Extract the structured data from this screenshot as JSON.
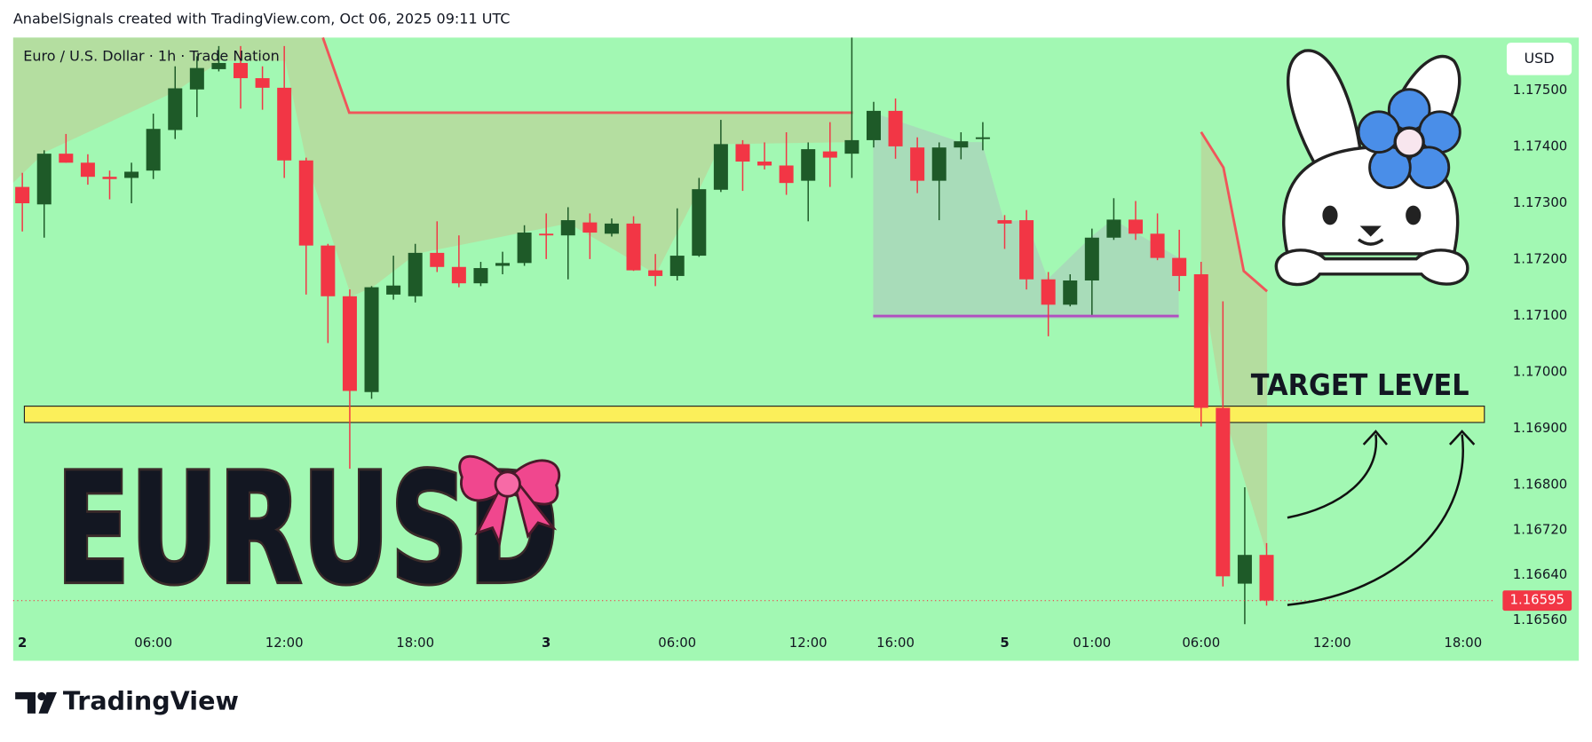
{
  "header": "AnabelSignals created with TradingView.com, Oct 06, 2025 09:11 UTC",
  "brand": "TradingView",
  "chart_data": {
    "type": "candlestick",
    "title": "Euro / U.S. Dollar · 1h · Trade Nation",
    "currency": "USD",
    "overlay_text": "EURUSD",
    "annotation": "TARGET LEVEL",
    "up_color": "#1e5a28",
    "down_color": "#f23645",
    "categories": [
      "2",
      null,
      null,
      null,
      null,
      null,
      "06:00",
      null,
      null,
      null,
      null,
      null,
      "12:00",
      null,
      null,
      null,
      null,
      null,
      "18:00",
      null,
      null,
      null,
      null,
      null,
      "3",
      null,
      null,
      null,
      null,
      null,
      "06:00",
      null,
      null,
      null,
      null,
      null,
      "12:00",
      null,
      null,
      null,
      "16:00",
      null,
      null,
      null,
      null,
      "5",
      null,
      null,
      null,
      "01:00",
      null,
      null,
      null,
      null,
      "06:00",
      null,
      null,
      null,
      null,
      null,
      "12:00",
      null,
      null,
      null,
      null,
      null,
      "18:00",
      null
    ],
    "open": [
      1.17329,
      1.17298,
      1.17388,
      1.17372,
      1.17347,
      1.17345,
      1.17358,
      1.1743,
      1.17502,
      1.17538,
      1.17549,
      1.17522,
      1.17505,
      1.17376,
      1.17225,
      1.17135,
      1.16965,
      1.17138,
      1.17135,
      1.17212,
      1.17187,
      1.17158,
      1.17189,
      1.17194,
      1.17246,
      1.17243,
      1.17266,
      1.17246,
      1.17264,
      1.17181,
      1.17171,
      1.17207,
      1.17324,
      1.17405,
      1.17374,
      1.17367,
      1.1734,
      1.17392,
      1.17388,
      1.17412,
      1.17464,
      1.17399,
      1.1734,
      1.17399,
      1.17414,
      1.1727,
      1.1727,
      1.17165,
      1.1712,
      1.17163,
      1.17239,
      1.17271,
      1.17246,
      1.17203,
      1.17174,
      1.16937,
      1.16625,
      1.16676,
      null,
      null,
      null,
      null,
      null,
      null,
      null,
      null,
      null,
      null
    ],
    "high": [
      1.17354,
      1.17394,
      1.17423,
      1.17387,
      1.17358,
      1.17372,
      1.17459,
      1.17543,
      1.17561,
      1.17579,
      1.17579,
      1.17543,
      1.17579,
      1.17381,
      1.17228,
      1.17147,
      1.17153,
      1.17207,
      1.17228,
      1.17268,
      1.17243,
      1.17196,
      1.17214,
      1.17261,
      1.17282,
      1.17293,
      1.17282,
      1.17273,
      1.17277,
      1.1721,
      1.17291,
      1.17345,
      1.17448,
      1.17412,
      1.17408,
      1.17426,
      1.17408,
      1.17444,
      1.17594,
      1.1748,
      1.17486,
      1.17417,
      1.17408,
      1.17426,
      1.17444,
      1.17279,
      1.17288,
      1.17178,
      1.17174,
      1.17255,
      1.17309,
      1.17304,
      1.17282,
      1.17253,
      1.17196,
      1.17126,
      1.16796,
      1.16697,
      null,
      null,
      null,
      null,
      null,
      null,
      null,
      null,
      null,
      null
    ],
    "low": [
      1.1725,
      1.17239,
      1.17372,
      1.17333,
      1.17307,
      1.173,
      1.17343,
      1.17414,
      1.17453,
      1.17534,
      1.17468,
      1.17466,
      1.17345,
      1.17138,
      1.17052,
      1.16829,
      1.16953,
      1.17129,
      1.17124,
      1.17178,
      1.17151,
      1.17153,
      1.17174,
      1.17189,
      1.17201,
      1.17165,
      1.17201,
      1.17241,
      1.1718,
      1.17153,
      1.17163,
      1.17205,
      1.1732,
      1.17322,
      1.1736,
      1.17315,
      1.17268,
      1.17329,
      1.17345,
      1.17399,
      1.17379,
      1.17318,
      1.1727,
      1.17378,
      1.17394,
      1.17219,
      1.17147,
      1.17064,
      1.17117,
      1.17102,
      1.17235,
      1.17235,
      1.17199,
      1.17144,
      1.16904,
      1.1662,
      1.16553,
      1.16586,
      null,
      null,
      null,
      null,
      null,
      null,
      null,
      null,
      null,
      null
    ],
    "close": [
      1.173,
      1.17388,
      1.17372,
      1.17347,
      1.17343,
      1.17356,
      1.17432,
      1.17504,
      1.1754,
      1.17549,
      1.17522,
      1.17505,
      1.17376,
      1.17225,
      1.17135,
      1.16967,
      1.17151,
      1.17154,
      1.17212,
      1.17187,
      1.17158,
      1.17185,
      1.17194,
      1.17248,
      1.17243,
      1.1727,
      1.17248,
      1.17264,
      1.17181,
      1.17171,
      1.17207,
      1.17325,
      1.17405,
      1.17374,
      1.17367,
      1.17336,
      1.17396,
      1.17381,
      1.17412,
      1.17464,
      1.17401,
      1.1734,
      1.17399,
      1.1741,
      1.17417,
      1.17264,
      1.17165,
      1.1712,
      1.17163,
      1.17239,
      1.17271,
      1.17246,
      1.17203,
      1.17171,
      1.16937,
      1.16638,
      1.16676,
      1.16595,
      null,
      null,
      null,
      null,
      null,
      null,
      null,
      null,
      null,
      null
    ],
    "ylim": [
      1.16544,
      1.17594
    ],
    "yticks": [
      {
        "value": 1.175,
        "label": "1.17500"
      },
      {
        "value": 1.174,
        "label": "1.17400"
      },
      {
        "value": 1.173,
        "label": "1.17300"
      },
      {
        "value": 1.172,
        "label": "1.17200"
      },
      {
        "value": 1.171,
        "label": "1.17100"
      },
      {
        "value": 1.17,
        "label": "1.17000"
      },
      {
        "value": 1.169,
        "label": "1.16900"
      },
      {
        "value": 1.168,
        "label": "1.16800"
      },
      {
        "value": 1.1672,
        "label": "1.16720"
      },
      {
        "value": 1.1664,
        "label": "1.16640"
      },
      {
        "value": 1.1656,
        "label": "1.16560"
      }
    ],
    "target_zone": [
      1.16911,
      1.1694
    ],
    "support_level": 1.171
  }
}
